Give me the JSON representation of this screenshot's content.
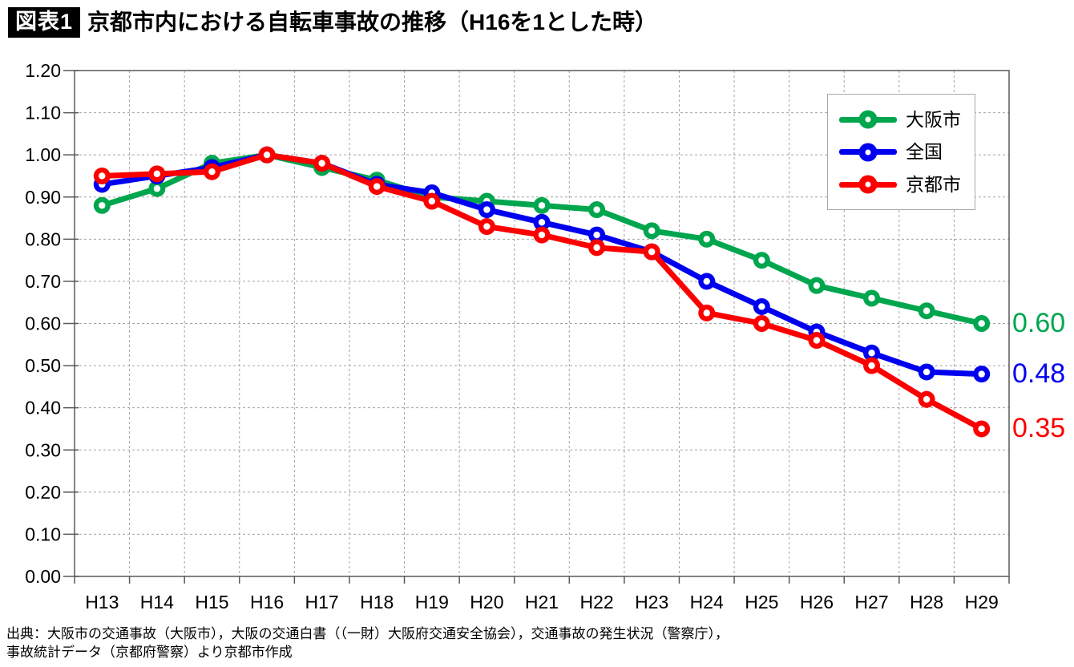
{
  "title": {
    "tag": "図表1",
    "text": "京都市内における自転車事故の推移（H16を1とした時）"
  },
  "chart_data": {
    "type": "line",
    "title": "京都市内における自転車事故の推移（H16を1とした時）",
    "categories": [
      "H13",
      "H14",
      "H15",
      "H16",
      "H17",
      "H18",
      "H19",
      "H20",
      "H21",
      "H22",
      "H23",
      "H24",
      "H25",
      "H26",
      "H27",
      "H28",
      "H29"
    ],
    "series": [
      {
        "name": "大阪市",
        "color": "#00A64E",
        "end_label": "0.60",
        "values": [
          0.88,
          0.92,
          0.98,
          1.0,
          0.97,
          0.94,
          0.9,
          0.89,
          0.88,
          0.87,
          0.82,
          0.8,
          0.75,
          0.69,
          0.66,
          0.63,
          0.6
        ]
      },
      {
        "name": "全国",
        "color": "#0000F0",
        "end_label": "0.48",
        "values": [
          0.93,
          0.95,
          0.97,
          1.0,
          0.98,
          0.93,
          0.91,
          0.87,
          0.84,
          0.81,
          0.77,
          0.7,
          0.64,
          0.58,
          0.53,
          0.485,
          0.48
        ]
      },
      {
        "name": "京都市",
        "color": "#FC0000",
        "end_label": "0.35",
        "values": [
          0.95,
          0.955,
          0.96,
          1.0,
          0.98,
          0.925,
          0.89,
          0.83,
          0.81,
          0.78,
          0.77,
          0.625,
          0.6,
          0.56,
          0.5,
          0.42,
          0.35
        ]
      }
    ],
    "ylim": [
      0.0,
      1.2
    ],
    "ytick_step": 0.1,
    "ytick_labels": [
      "1.20",
      "1.10",
      "1.00",
      "0.90",
      "0.80",
      "0.70",
      "0.60",
      "0.50",
      "0.40",
      "0.30",
      "0.20",
      "0.10",
      "0.00"
    ],
    "grid": true,
    "legend_position": "top-right-inside"
  },
  "source": {
    "line1": "出典：大阪市の交通事故（大阪市），大阪の交通白書（（一財）大阪府交通安全協会），交通事故の発生状況（警察庁），",
    "line2": "事故統計データ（京都府警察）より京都市作成"
  }
}
